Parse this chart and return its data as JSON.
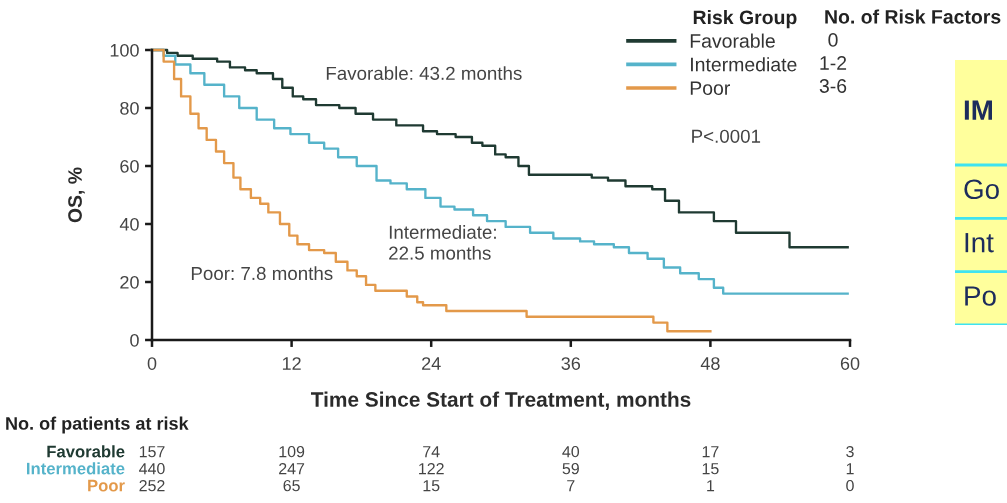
{
  "chart_data": [
    {
      "type": "step",
      "xlabel": "Time Since Start of Treatment, months",
      "ylabel": "OS, %",
      "legend_title": "Risk Group",
      "legend": "top right",
      "xlim": [
        0,
        60
      ],
      "ylim": [
        0,
        100
      ],
      "xticks": [
        0,
        12,
        24,
        36,
        48,
        60
      ],
      "yticks": [
        0,
        20,
        40,
        60,
        80,
        100
      ],
      "series": [
        {
          "name": "Favorable",
          "color": "#1f3a32",
          "x": [
            0,
            1.3,
            2.2,
            3.5,
            5.6,
            6.7,
            8,
            9,
            10.4,
            11.2,
            12.1,
            13,
            14.1,
            16.1,
            17.5,
            19,
            21,
            23.3,
            24.5,
            26.1,
            27.5,
            28.4,
            29.5,
            30.4,
            31.5,
            32.4,
            37.8,
            39.2,
            40.7,
            43,
            44.1,
            45.3,
            48.3,
            50.2,
            54.8,
            59.8
          ],
          "values": [
            100,
            99,
            98,
            97,
            96,
            94,
            93,
            92,
            90,
            87,
            84,
            83,
            81,
            80,
            78,
            76,
            74,
            72,
            71,
            70,
            68,
            67,
            64,
            63,
            60,
            57,
            56,
            55,
            53,
            52,
            48,
            44,
            41,
            37,
            32,
            32
          ]
        },
        {
          "name": "Intermediate",
          "color": "#55b3ca",
          "x": [
            0,
            1,
            2,
            3.3,
            4.5,
            6.2,
            7.5,
            9,
            10.5,
            11.9,
            13.5,
            14.8,
            16,
            17.6,
            19.3,
            20.5,
            21.9,
            23.5,
            24.8,
            26,
            27.6,
            28.8,
            30.4,
            32.5,
            34.5,
            36.8,
            38,
            39.7,
            41,
            42.6,
            44,
            45.4,
            47,
            48.3,
            49.1,
            59.8
          ],
          "values": [
            100,
            98,
            95,
            92,
            88,
            84,
            80,
            76,
            73,
            71,
            68,
            66,
            63,
            60,
            55,
            54,
            52,
            49,
            46,
            45,
            43,
            41,
            39,
            37,
            35,
            34,
            33,
            32,
            30,
            28,
            25,
            23,
            21,
            18,
            16,
            16
          ]
        },
        {
          "name": "Poor",
          "color": "#e3994a",
          "x": [
            0,
            1,
            1.9,
            2.5,
            3.3,
            4,
            4.7,
            5.5,
            6.2,
            7,
            7.6,
            8.5,
            9.3,
            10,
            11,
            11.8,
            12.5,
            13.5,
            14.8,
            15.8,
            16.8,
            17.6,
            18.4,
            19.2,
            21.9,
            22.8,
            23.3,
            25.3,
            32.2,
            43.1,
            44.3,
            48
          ],
          "values": [
            100,
            96,
            90,
            84,
            78,
            73,
            69,
            65,
            61,
            56,
            52,
            49,
            47,
            44,
            40,
            36,
            33,
            31,
            30,
            27,
            24,
            22,
            19,
            17,
            15,
            13,
            12,
            10,
            8,
            6,
            3,
            3
          ]
        }
      ],
      "annotations": [
        "Favorable: 43.2 months",
        "Intermediate:\n22.5 months",
        "Poor: 7.8 months",
        "P<.0001",
        "No. of Risk Factors",
        "0",
        "1-2",
        "3-6"
      ]
    },
    {
      "type": "other",
      "title": "IM",
      "annotations": [
        "Go",
        "Int",
        "Po"
      ]
    },
    {
      "type": "other",
      "title": "No. of patients at risk",
      "annotations": [
        "Favorable",
        "157",
        "109",
        "74",
        "40",
        "17",
        "3",
        "Intermediate",
        "440",
        "247",
        "122",
        "59",
        "15",
        "1",
        "Poor",
        "252",
        "65",
        "15",
        "7",
        "1",
        "0"
      ]
    }
  ]
}
